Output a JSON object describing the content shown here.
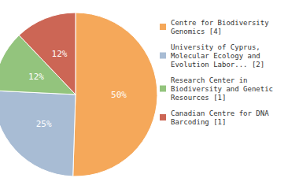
{
  "chart_data": {
    "type": "pie",
    "categories": [
      "Centre for Biodiversity\nGenomics [4]",
      "University of Cyprus,\nMolecular Ecology and\nEvolution Labor... [2]",
      "Research Center in\nBiodiversity and Genetic\nResources [1]",
      "Canadian Centre for DNA\nBarcoding [1]"
    ],
    "values": [
      50,
      25,
      12,
      12
    ],
    "value_labels": [
      "50%",
      "25%",
      "12%",
      "12%"
    ],
    "data_labels": true,
    "colors": [
      "#f5a85a",
      "#a8bcd4",
      "#93c47d",
      "#cc6655"
    ],
    "legend": "right"
  }
}
